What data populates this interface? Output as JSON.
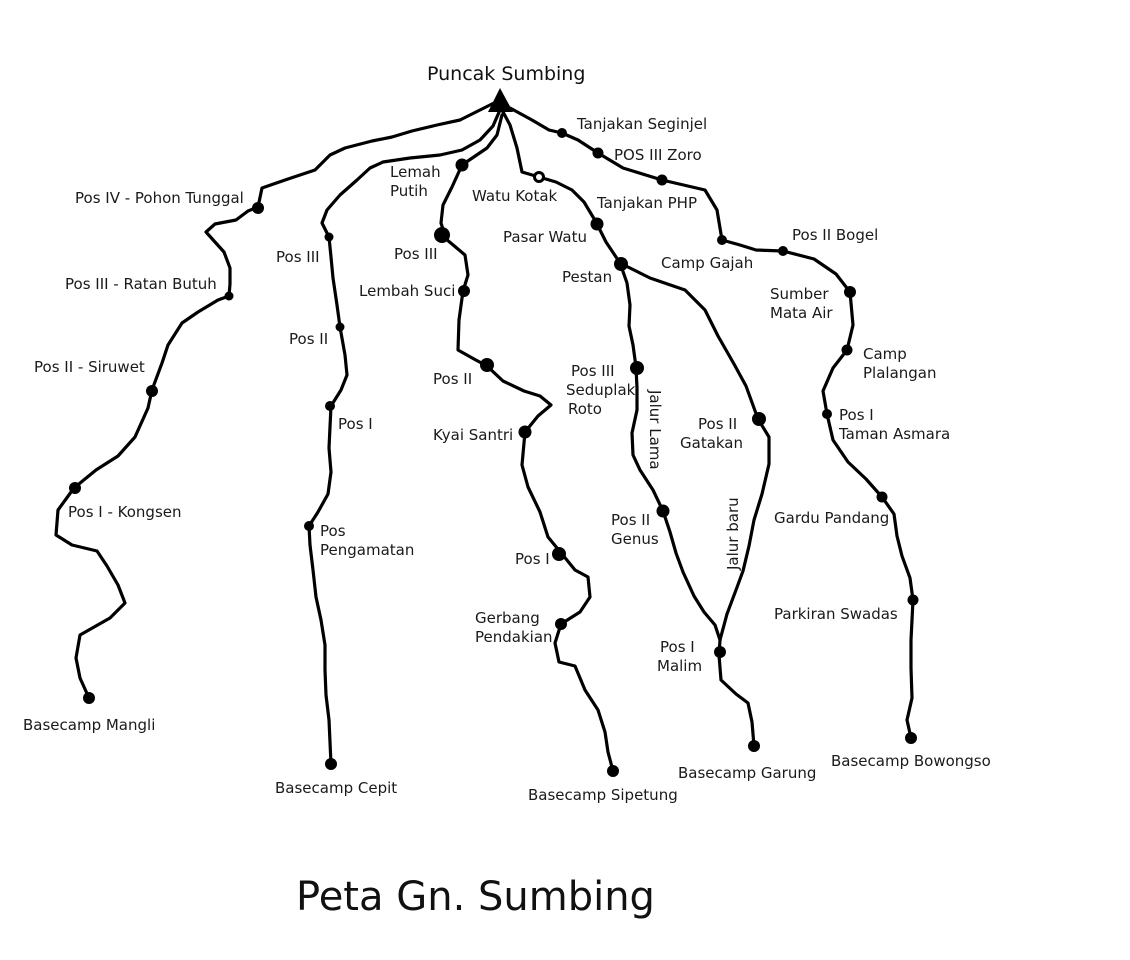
{
  "map_title": "Peta Gn. Sumbing",
  "summit": "Puncak Sumbing",
  "trails": {
    "mangli": {
      "basecamp": "Basecamp Mangli",
      "posts": [
        "Pos I - Kongsen",
        "Pos II - Siruwet",
        "Pos III - Ratan Butuh",
        "Pos IV - Pohon Tunggal"
      ]
    },
    "cepit": {
      "basecamp": "Basecamp Cepit",
      "posts": [
        "Pos",
        "Pengamatan",
        "Pos I",
        "Pos II",
        "Pos III",
        "Lemah",
        "Putih"
      ]
    },
    "sipetung": {
      "basecamp": "Basecamp Sipetung",
      "posts": [
        "Gerbang",
        "Pendakian",
        "Pos I",
        "Kyai Santri",
        "Pos II",
        "Lembah Suci",
        "Pos III"
      ]
    },
    "garung": {
      "basecamp": "Basecamp Garung",
      "posts": [
        "Pos I",
        "Malim",
        "Pos II",
        "Genus",
        "Pos III",
        "Seduplak",
        "Roto",
        "Pos II",
        "Gatakan",
        "Pestan",
        "Pasar Watu",
        "Watu Kotak",
        "Tanjakan PHP",
        "Camp Gajah"
      ],
      "route_lama": "Jalur Lama",
      "route_baru": "Jalur baru"
    },
    "bowongso": {
      "basecamp": "Basecamp Bowongso",
      "posts": [
        "Parkiran Swadas",
        "Gardu Pandang",
        "Pos I",
        "Taman Asmara",
        "Camp",
        "Plalangan",
        "Sumber",
        "Mata Air",
        "Pos II Bogel",
        "POS III Zoro",
        "Tanjakan Seginjel"
      ]
    }
  }
}
